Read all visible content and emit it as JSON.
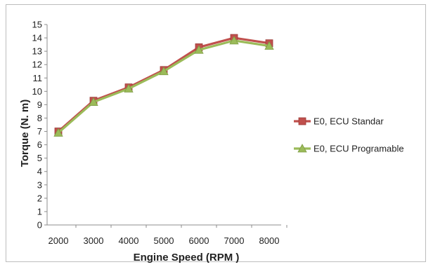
{
  "chart_data": {
    "type": "line",
    "title": "",
    "xlabel": "Engine Speed (RPM )",
    "ylabel": "Torque (N. m)",
    "x": [
      2000,
      3000,
      4000,
      5000,
      6000,
      7000,
      8000
    ],
    "x_tick_labels": [
      "2000",
      "3000",
      "4000",
      "5000",
      "6000",
      "7000",
      "8000"
    ],
    "y_ticks": [
      0,
      1,
      2,
      3,
      4,
      5,
      6,
      7,
      8,
      9,
      10,
      11,
      12,
      13,
      14,
      15
    ],
    "ylim": [
      0,
      15
    ],
    "grid": false,
    "legend_position": "right",
    "series": [
      {
        "name": "E0, ECU Standar",
        "color": "#c0504d",
        "marker": "square",
        "values": [
          7.0,
          9.3,
          10.3,
          11.6,
          13.3,
          14.0,
          13.6
        ]
      },
      {
        "name": "E0, ECU Programable",
        "color": "#9bbb59",
        "marker": "triangle",
        "values": [
          6.9,
          9.2,
          10.2,
          11.5,
          13.1,
          13.8,
          13.4
        ]
      }
    ]
  }
}
